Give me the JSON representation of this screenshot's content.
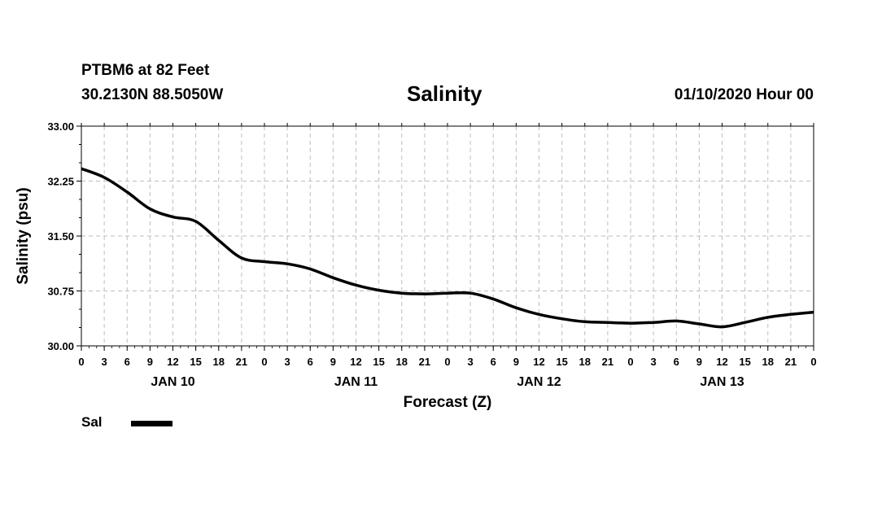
{
  "header": {
    "station": "PTBM6 at 82 Feet",
    "coords": "30.2130N 88.5050W",
    "title": "Salinity",
    "timestamp": "01/10/2020 Hour 00"
  },
  "chart_data": {
    "type": "line",
    "title": "Salinity",
    "xlabel": "Forecast (Z)",
    "ylabel": "Salinity (psu)",
    "ylim": [
      30.0,
      33.0
    ],
    "xlim": [
      0,
      96
    ],
    "yticks": [
      "30.00",
      "30.75",
      "31.50",
      "32.25",
      "33.00"
    ],
    "xtick_labels": [
      "0",
      "3",
      "6",
      "9",
      "12",
      "15",
      "18",
      "21",
      "0",
      "3",
      "6",
      "9",
      "12",
      "15",
      "18",
      "21",
      "0",
      "3",
      "6",
      "9",
      "12",
      "15",
      "18",
      "21",
      "0",
      "3",
      "6",
      "9",
      "12",
      "15",
      "18",
      "21",
      "0"
    ],
    "day_labels": [
      {
        "label": "JAN 10",
        "hour": 12
      },
      {
        "label": "JAN 11",
        "hour": 36
      },
      {
        "label": "JAN 12",
        "hour": 60
      },
      {
        "label": "JAN 13",
        "hour": 84
      }
    ],
    "grid": true,
    "legend": "bottom-left",
    "series": [
      {
        "name": "Sal",
        "x": [
          0,
          3,
          6,
          9,
          12,
          15,
          18,
          21,
          24,
          27,
          30,
          33,
          36,
          39,
          42,
          45,
          48,
          51,
          54,
          57,
          60,
          63,
          66,
          69,
          72,
          75,
          78,
          81,
          84,
          87,
          90,
          93,
          96
        ],
        "values": [
          32.42,
          32.3,
          32.1,
          31.87,
          31.76,
          31.7,
          31.44,
          31.2,
          31.15,
          31.12,
          31.05,
          30.93,
          30.83,
          30.76,
          30.72,
          30.71,
          30.72,
          30.72,
          30.64,
          30.52,
          30.43,
          30.37,
          30.33,
          30.32,
          30.31,
          30.32,
          30.34,
          30.3,
          30.26,
          30.32,
          30.39,
          30.43,
          30.46
        ]
      }
    ]
  }
}
